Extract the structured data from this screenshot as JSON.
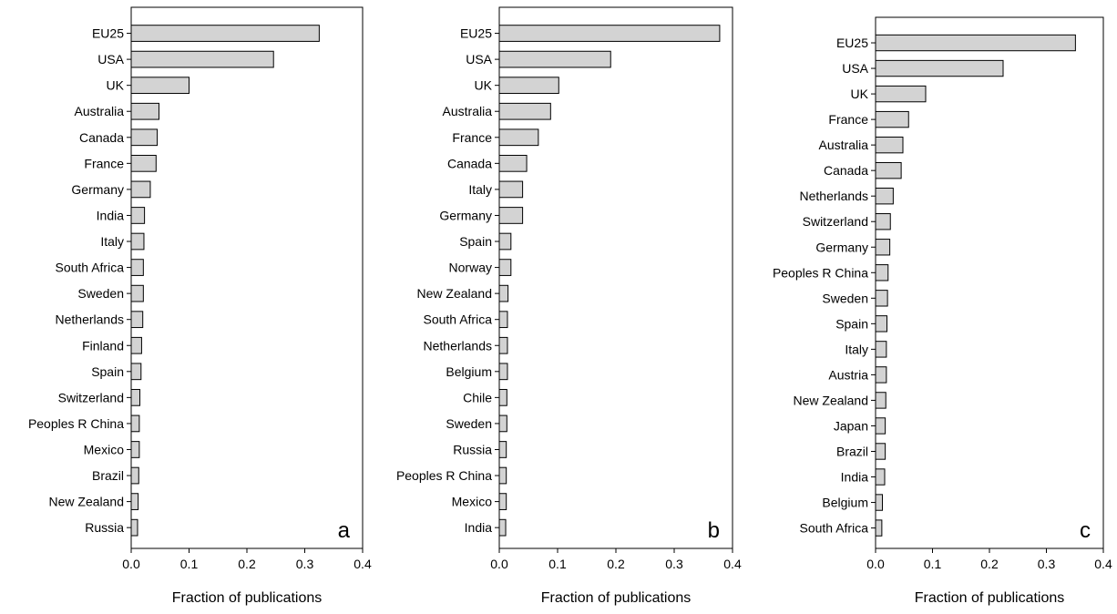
{
  "chart_data": [
    {
      "type": "bar",
      "orientation": "horizontal",
      "panel_label": "a",
      "xlabel": "Fraction of publications",
      "ylabel": "",
      "xlim": [
        0,
        0.4
      ],
      "xticks": [
        "0.0",
        "0.1",
        "0.2",
        "0.3",
        "0.4"
      ],
      "grid": false,
      "categories": [
        "EU25",
        "USA",
        "UK",
        "Australia",
        "Canada",
        "France",
        "Germany",
        "India",
        "Italy",
        "South Africa",
        "Sweden",
        "Netherlands",
        "Finland",
        "Spain",
        "Switzerland",
        "Peoples R China",
        "Mexico",
        "Brazil",
        "New Zealand",
        "Russia"
      ],
      "values": [
        0.325,
        0.246,
        0.1,
        0.048,
        0.045,
        0.043,
        0.033,
        0.023,
        0.022,
        0.021,
        0.021,
        0.02,
        0.018,
        0.017,
        0.015,
        0.014,
        0.014,
        0.013,
        0.012,
        0.011
      ]
    },
    {
      "type": "bar",
      "orientation": "horizontal",
      "panel_label": "b",
      "xlabel": "Fraction of publications",
      "ylabel": "",
      "xlim": [
        0,
        0.4
      ],
      "xticks": [
        "0.0",
        "0.1",
        "0.2",
        "0.3",
        "0.4"
      ],
      "grid": false,
      "categories": [
        "EU25",
        "USA",
        "UK",
        "Australia",
        "France",
        "Canada",
        "Italy",
        "Germany",
        "Spain",
        "Norway",
        "New Zealand",
        "South Africa",
        "Netherlands",
        "Belgium",
        "Chile",
        "Sweden",
        "Russia",
        "Peoples R China",
        "Mexico",
        "India"
      ],
      "values": [
        0.378,
        0.191,
        0.102,
        0.088,
        0.067,
        0.047,
        0.04,
        0.04,
        0.02,
        0.02,
        0.015,
        0.014,
        0.014,
        0.014,
        0.013,
        0.013,
        0.012,
        0.012,
        0.012,
        0.011
      ]
    },
    {
      "type": "bar",
      "orientation": "horizontal",
      "panel_label": "c",
      "xlabel": "Fraction of publications",
      "ylabel": "",
      "xlim": [
        0,
        0.4
      ],
      "xticks": [
        "0.0",
        "0.1",
        "0.2",
        "0.3",
        "0.4"
      ],
      "grid": false,
      "categories": [
        "EU25",
        "USA",
        "UK",
        "France",
        "Australia",
        "Canada",
        "Netherlands",
        "Switzerland",
        "Germany",
        "Peoples R China",
        "Sweden",
        "Spain",
        "Italy",
        "Austria",
        "New Zealand",
        "Japan",
        "Brazil",
        "India",
        "Belgium",
        "South Africa"
      ],
      "values": [
        0.351,
        0.224,
        0.088,
        0.058,
        0.048,
        0.045,
        0.031,
        0.026,
        0.025,
        0.022,
        0.021,
        0.02,
        0.019,
        0.019,
        0.018,
        0.017,
        0.017,
        0.016,
        0.012,
        0.011
      ]
    }
  ],
  "colors": {
    "bar_fill": "#d3d3d3",
    "bar_stroke": "#000000",
    "axis": "#000000"
  }
}
